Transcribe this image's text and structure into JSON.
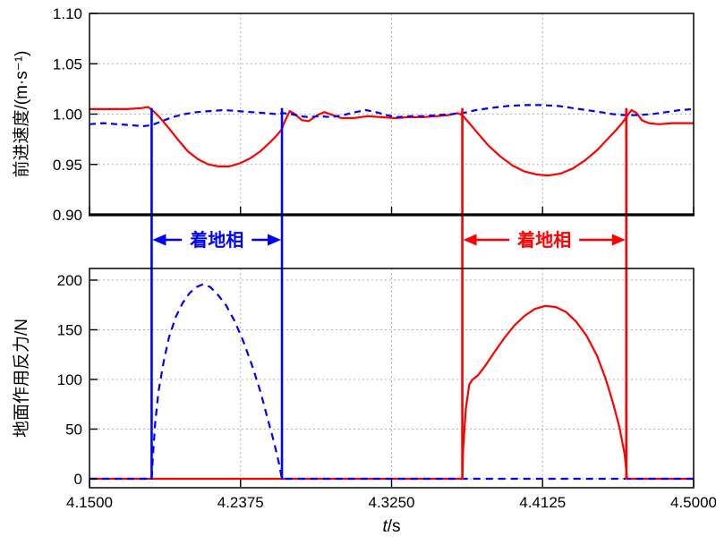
{
  "figure": {
    "background": "#ffffff",
    "frame_color": "#000000",
    "grid_color": "#b0b0b0"
  },
  "xaxis": {
    "label_var": "t",
    "label_unit": "/s",
    "xlim": [
      4.15,
      4.5
    ],
    "ticks": [
      {
        "v": 4.15,
        "label": "4.1500"
      },
      {
        "v": 4.2375,
        "label": "4.2375"
      },
      {
        "v": 4.325,
        "label": "4.3250"
      },
      {
        "v": 4.4125,
        "label": "4.4125"
      },
      {
        "v": 4.5,
        "label": "4.5000"
      }
    ]
  },
  "chart_data": [
    {
      "type": "line",
      "id": "forward-velocity",
      "ylabel": "前进速度/(m·s⁻¹)",
      "ylim": [
        0.9,
        1.1
      ],
      "grid": true,
      "yticks": [
        {
          "v": 0.9,
          "label": "0.90"
        },
        {
          "v": 0.95,
          "label": "0.95"
        },
        {
          "v": 1.0,
          "label": "1.00"
        },
        {
          "v": 1.05,
          "label": "1.05"
        },
        {
          "v": 1.1,
          "label": "1.10"
        }
      ],
      "series": [
        {
          "name": "red-solid-velocity",
          "color": "#ff0000",
          "dash": null,
          "width": 2.2,
          "points": [
            [
              4.15,
              1.005
            ],
            [
              4.162,
              1.005
            ],
            [
              4.172,
              1.005
            ],
            [
              4.18,
              1.006
            ],
            [
              4.184,
              1.007
            ],
            [
              4.187,
              1.003
            ],
            [
              4.191,
              0.996
            ],
            [
              4.196,
              0.986
            ],
            [
              4.201,
              0.975
            ],
            [
              4.207,
              0.963
            ],
            [
              4.213,
              0.955
            ],
            [
              4.219,
              0.95
            ],
            [
              4.225,
              0.948
            ],
            [
              4.231,
              0.948
            ],
            [
              4.237,
              0.951
            ],
            [
              4.243,
              0.956
            ],
            [
              4.249,
              0.963
            ],
            [
              4.254,
              0.971
            ],
            [
              4.258,
              0.978
            ],
            [
              4.261,
              0.984
            ],
            [
              4.263,
              0.992
            ],
            [
              4.266,
              1.003
            ],
            [
              4.269,
              1.0
            ],
            [
              4.273,
              0.994
            ],
            [
              4.277,
              0.993
            ],
            [
              4.282,
              0.999
            ],
            [
              4.286,
              1.002
            ],
            [
              4.291,
              0.999
            ],
            [
              4.296,
              0.996
            ],
            [
              4.303,
              0.996
            ],
            [
              4.311,
              0.998
            ],
            [
              4.319,
              0.997
            ],
            [
              4.327,
              0.996
            ],
            [
              4.335,
              0.997
            ],
            [
              4.343,
              0.997
            ],
            [
              4.351,
              0.998
            ],
            [
              4.358,
              0.999
            ],
            [
              4.363,
              1.001
            ],
            [
              4.366,
              0.999
            ],
            [
              4.37,
              0.991
            ],
            [
              4.375,
              0.981
            ],
            [
              4.381,
              0.969
            ],
            [
              4.388,
              0.958
            ],
            [
              4.395,
              0.949
            ],
            [
              4.402,
              0.943
            ],
            [
              4.409,
              0.94
            ],
            [
              4.416,
              0.939
            ],
            [
              4.423,
              0.941
            ],
            [
              4.43,
              0.946
            ],
            [
              4.437,
              0.954
            ],
            [
              4.444,
              0.964
            ],
            [
              4.45,
              0.975
            ],
            [
              4.455,
              0.984
            ],
            [
              4.459,
              0.992
            ],
            [
              4.461,
              0.997
            ],
            [
              4.464,
              1.004
            ],
            [
              4.467,
              1.001
            ],
            [
              4.47,
              0.994
            ],
            [
              4.474,
              0.991
            ],
            [
              4.48,
              0.99
            ],
            [
              4.488,
              0.991
            ],
            [
              4.5,
              0.991
            ]
          ]
        },
        {
          "name": "blue-dashed-velocity",
          "color": "#0000ff",
          "dash": "7,5",
          "width": 2.2,
          "points": [
            [
              4.15,
              0.99
            ],
            [
              4.158,
              0.991
            ],
            [
              4.166,
              0.99
            ],
            [
              4.174,
              0.989
            ],
            [
              4.181,
              0.988
            ],
            [
              4.186,
              0.989
            ],
            [
              4.192,
              0.993
            ],
            [
              4.198,
              0.997
            ],
            [
              4.205,
              1.0
            ],
            [
              4.212,
              1.002
            ],
            [
              4.22,
              1.003
            ],
            [
              4.228,
              1.004
            ],
            [
              4.236,
              1.003
            ],
            [
              4.244,
              1.002
            ],
            [
              4.252,
              1.001
            ],
            [
              4.258,
              1.0
            ],
            [
              4.262,
              1.001
            ],
            [
              4.267,
              1.0
            ],
            [
              4.272,
              0.998
            ],
            [
              4.277,
              0.997
            ],
            [
              4.283,
              0.998
            ],
            [
              4.29,
              0.997
            ],
            [
              4.297,
              0.999
            ],
            [
              4.304,
              1.002
            ],
            [
              4.31,
              1.004
            ],
            [
              4.316,
              1.002
            ],
            [
              4.322,
              0.999
            ],
            [
              4.328,
              0.997
            ],
            [
              4.336,
              0.998
            ],
            [
              4.344,
              0.998
            ],
            [
              4.352,
              0.999
            ],
            [
              4.36,
              1.0
            ],
            [
              4.366,
              1.001
            ],
            [
              4.374,
              1.004
            ],
            [
              4.382,
              1.006
            ],
            [
              4.392,
              1.008
            ],
            [
              4.402,
              1.009
            ],
            [
              4.412,
              1.009
            ],
            [
              4.422,
              1.008
            ],
            [
              4.43,
              1.006
            ],
            [
              4.438,
              1.004
            ],
            [
              4.446,
              1.002
            ],
            [
              4.453,
              1.0
            ],
            [
              4.46,
              0.999
            ],
            [
              4.468,
              0.999
            ],
            [
              4.476,
              1.0
            ],
            [
              4.484,
              1.002
            ],
            [
              4.492,
              1.004
            ],
            [
              4.5,
              1.005
            ]
          ]
        }
      ]
    },
    {
      "type": "line",
      "id": "ground-reaction-force",
      "ylabel": "地面作用反力/N",
      "ylim": [
        0,
        200
      ],
      "grid": true,
      "yticks": [
        {
          "v": 0,
          "label": "0"
        },
        {
          "v": 50,
          "label": "50"
        },
        {
          "v": 100,
          "label": "100"
        },
        {
          "v": 150,
          "label": "150"
        },
        {
          "v": 200,
          "label": "200"
        }
      ],
      "series": [
        {
          "name": "red-solid-grf",
          "color": "#ff0000",
          "dash": null,
          "width": 2.2,
          "points": [
            [
              4.15,
              0
            ],
            [
              4.25,
              0
            ],
            [
              4.366,
              0
            ],
            [
              4.3665,
              30
            ],
            [
              4.368,
              70
            ],
            [
              4.37,
              95
            ],
            [
              4.372,
              100
            ],
            [
              4.375,
              104
            ],
            [
              4.379,
              113
            ],
            [
              4.384,
              126
            ],
            [
              4.39,
              141
            ],
            [
              4.396,
              154
            ],
            [
              4.402,
              164
            ],
            [
              4.408,
              171
            ],
            [
              4.414,
              174
            ],
            [
              4.42,
              173
            ],
            [
              4.426,
              168
            ],
            [
              4.432,
              158
            ],
            [
              4.438,
              144
            ],
            [
              4.444,
              124
            ],
            [
              4.449,
              101
            ],
            [
              4.453,
              78
            ],
            [
              4.457,
              52
            ],
            [
              4.46,
              25
            ],
            [
              4.461,
              8
            ],
            [
              4.4615,
              0
            ],
            [
              4.47,
              0
            ],
            [
              4.5,
              0
            ]
          ]
        },
        {
          "name": "blue-dashed-grf",
          "color": "#0000ff",
          "dash": "8,6",
          "width": 2.2,
          "points": [
            [
              4.15,
              0
            ],
            [
              4.186,
              0
            ],
            [
              4.187,
              30
            ],
            [
              4.188,
              55
            ],
            [
              4.19,
              88
            ],
            [
              4.193,
              118
            ],
            [
              4.196,
              142
            ],
            [
              4.2,
              163
            ],
            [
              4.204,
              177
            ],
            [
              4.208,
              187
            ],
            [
              4.212,
              193
            ],
            [
              4.216,
              196
            ],
            [
              4.22,
              193
            ],
            [
              4.224,
              186
            ],
            [
              4.229,
              175
            ],
            [
              4.234,
              159
            ],
            [
              4.239,
              139
            ],
            [
              4.244,
              115
            ],
            [
              4.249,
              88
            ],
            [
              4.253,
              62
            ],
            [
              4.257,
              36
            ],
            [
              4.26,
              14
            ],
            [
              4.2615,
              0
            ],
            [
              4.27,
              0
            ],
            [
              4.35,
              0
            ],
            [
              4.5,
              0
            ]
          ]
        }
      ]
    }
  ],
  "annotations": [
    {
      "label": "着地相",
      "color": "#0000ff",
      "t_start": 4.186,
      "t_end": 4.2615
    },
    {
      "label": "着地相",
      "color": "#ff0000",
      "t_start": 4.366,
      "t_end": 4.461
    }
  ]
}
